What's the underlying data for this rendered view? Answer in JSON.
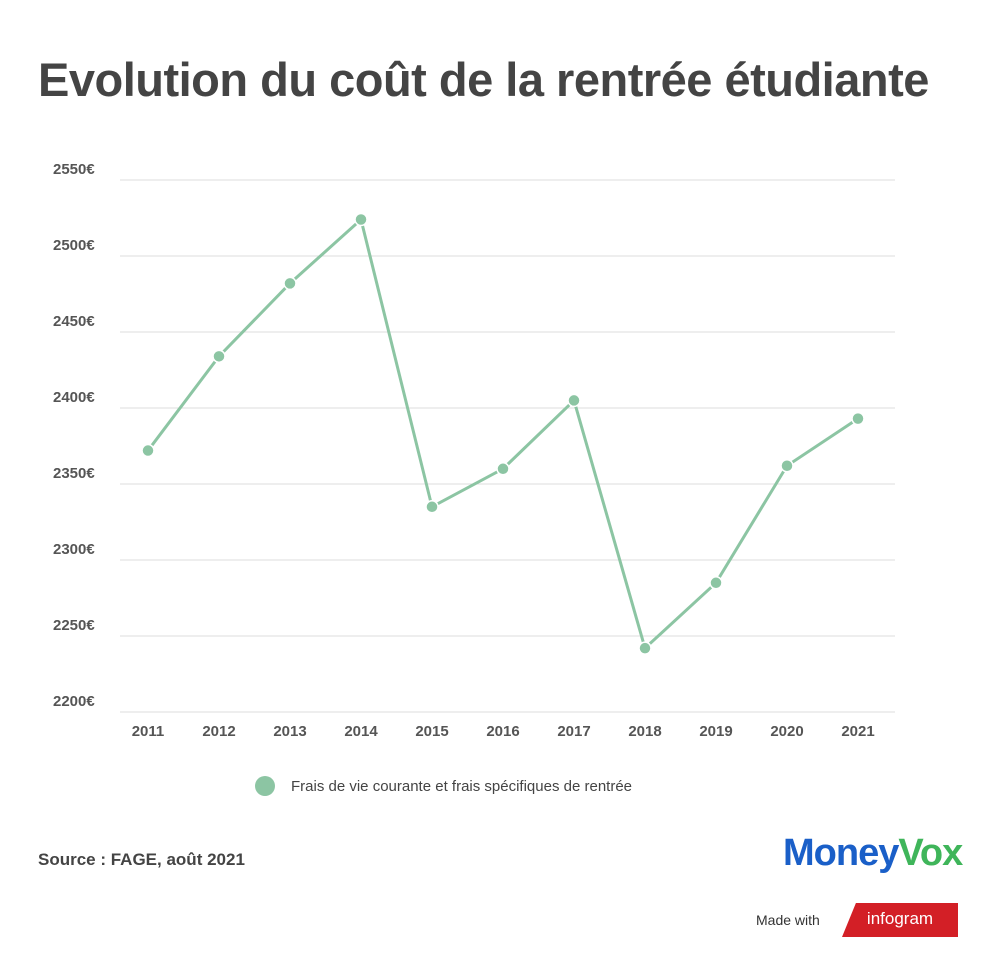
{
  "chart_data": {
    "type": "line",
    "title": "Evolution du coût de la rentrée étudiante",
    "categories": [
      "2011",
      "2012",
      "2013",
      "2014",
      "2015",
      "2016",
      "2017",
      "2018",
      "2019",
      "2020",
      "2021"
    ],
    "series": [
      {
        "name": "Frais de vie courante et frais spécifiques de rentrée",
        "values": [
          2372,
          2434,
          2482,
          2524,
          2335,
          2360,
          2405,
          2242,
          2285,
          2362,
          2393
        ],
        "color": "#8cc5a3"
      }
    ],
    "ylim": [
      2200,
      2550
    ],
    "yticks": [
      2200,
      2250,
      2300,
      2350,
      2400,
      2450,
      2500,
      2550
    ],
    "ytick_suffix": "€",
    "grid": true,
    "legend_position": "bottom"
  },
  "source": "Source : FAGE, août 2021",
  "logo": {
    "part1": "Money",
    "part2": "Vox",
    "color1": "#1a5fc8",
    "color2": "#3fb55a"
  },
  "made_with": "Made with",
  "infogram": "infogram"
}
